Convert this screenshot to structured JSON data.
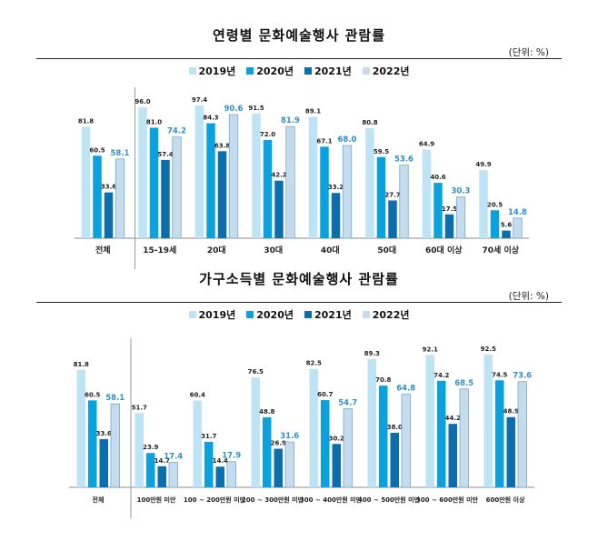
{
  "legend_colors": [
    "#bde3f5",
    "#0aa2de",
    "#0d6eae",
    "#c5dcee"
  ],
  "value_colors": [
    "#222222",
    "#222222",
    "#222222",
    "#2f8fc8"
  ],
  "chart_data": [
    {
      "type": "bar",
      "title": "연령별 문화예술행사 관람률",
      "unit": "(단위: %)",
      "ylim": [
        0,
        100
      ],
      "grid": false,
      "legend_position": "top",
      "categories": [
        "전체",
        "15-19세",
        "20대",
        "30대",
        "40대",
        "50대",
        "60대 이상",
        "70세 이상"
      ],
      "series": [
        {
          "name": "2019년",
          "values": [
            81.8,
            96.0,
            97.4,
            91.5,
            89.1,
            80.8,
            64.9,
            49.9
          ]
        },
        {
          "name": "2020년",
          "values": [
            60.5,
            81.0,
            84.3,
            72.0,
            67.1,
            59.5,
            40.6,
            20.5
          ]
        },
        {
          "name": "2021년",
          "values": [
            33.6,
            57.4,
            63.8,
            42.2,
            33.2,
            27.7,
            17.5,
            5.6
          ]
        },
        {
          "name": "2022년",
          "values": [
            58.1,
            74.2,
            90.6,
            81.9,
            68.0,
            53.6,
            30.3,
            14.8
          ]
        }
      ]
    },
    {
      "type": "bar",
      "title": "가구소득별 문화예술행사 관람률",
      "unit": "(단위: %)",
      "ylim": [
        0,
        100
      ],
      "grid": false,
      "legend_position": "top",
      "categories": [
        "전체",
        "100만원 미만",
        "100 ~ 200만원 미만",
        "200 ~ 300만원 미만",
        "300 ~ 400만원 미만",
        "400 ~ 500만원 미만",
        "500 ~ 600만원 미만",
        "600만원 이상"
      ],
      "series": [
        {
          "name": "2019년",
          "values": [
            81.8,
            51.7,
            60.4,
            76.5,
            82.5,
            89.3,
            92.1,
            92.5
          ]
        },
        {
          "name": "2020년",
          "values": [
            60.5,
            23.9,
            31.7,
            48.8,
            60.7,
            70.8,
            74.2,
            74.5
          ]
        },
        {
          "name": "2021년",
          "values": [
            33.6,
            14.7,
            14.4,
            26.9,
            30.2,
            38.0,
            44.2,
            48.9
          ]
        },
        {
          "name": "2022년",
          "values": [
            58.1,
            17.4,
            17.9,
            31.6,
            54.7,
            64.8,
            68.5,
            73.6
          ]
        }
      ]
    }
  ]
}
